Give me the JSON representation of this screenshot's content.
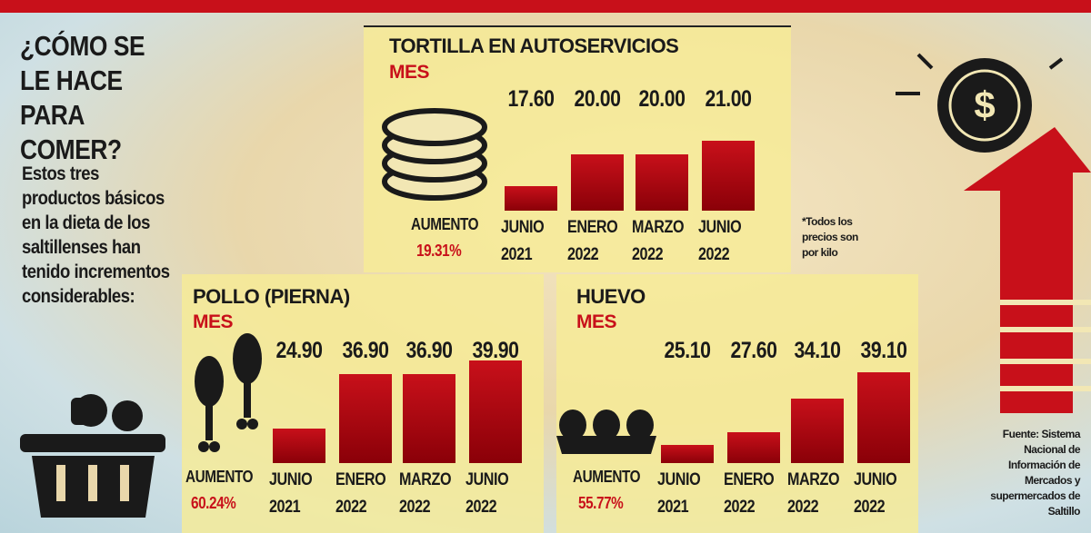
{
  "headline": "¿CÓMO SE LE HACE PARA COMER?",
  "body": "Estos tres productos básicos en la dieta de los saltillenses han tenido incrementos considerables:",
  "note": "*Todos los precios son por kilo",
  "source": "Fuente: Sistema Nacional de Información de Mercados y supermercados de Saltillo",
  "chart_data": [
    {
      "type": "bar",
      "title": "TORTILLA EN AUTOSERVICIOS",
      "subtitle": "MES",
      "categories": [
        "JUNIO 2021",
        "ENERO 2022",
        "MARZO 2022",
        "JUNIO 2022"
      ],
      "values": [
        17.6,
        20,
        20,
        21
      ],
      "value_labels": [
        "17.60",
        "20.00",
        "20.00",
        "21.00"
      ],
      "increase_label": "AUMENTO",
      "increase": "19.31%",
      "color": "#c8101a",
      "ylim": [
        15.7,
        24
      ]
    },
    {
      "type": "bar",
      "title": "POLLO (PIERNA)",
      "subtitle": "MES",
      "categories": [
        "JUNIO 2021",
        "ENERO 2022",
        "MARZO 2022",
        "JUNIO 2022"
      ],
      "values": [
        24.9,
        36.9,
        36.9,
        39.9
      ],
      "value_labels": [
        "24.90",
        "36.90",
        "36.90",
        "39.90"
      ],
      "increase_label": "AUMENTO",
      "increase": "60.24%",
      "color": "#c8101a",
      "ylim": [
        17.3,
        41.3
      ]
    },
    {
      "type": "bar",
      "title": "HUEVO",
      "subtitle": "MES",
      "categories": [
        "JUNIO 2021",
        "ENERO 2022",
        "MARZO 2022",
        "JUNIO 2022"
      ],
      "values": [
        25.1,
        27.6,
        34.1,
        39.1
      ],
      "value_labels": [
        "25.10",
        "27.60",
        "34.10",
        "39.10"
      ],
      "increase_label": "AUMENTO",
      "increase": "55.77%",
      "color": "#c8101a",
      "ylim": [
        21.6,
        42.6
      ]
    }
  ]
}
